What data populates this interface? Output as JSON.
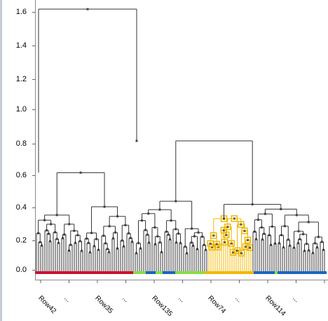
{
  "dendrogram": {
    "y_axis": {
      "ticks": [
        "1.6",
        "1.4",
        "1.2",
        "1.0",
        "0.8",
        "0.6",
        "0.4",
        "0.2",
        "0.0"
      ],
      "min": 0.0,
      "max": 1.7
    },
    "x_axis": {
      "labels": [
        "Row42",
        "...",
        "Row35",
        "...",
        "Row135",
        "...",
        "Row74",
        "...",
        "Row114",
        "..."
      ]
    },
    "colors": {
      "red_cluster": "#cc1133",
      "green_cluster": "#88dd44",
      "blue_cluster": "#1a66c2",
      "selection": "#f2b800",
      "branch": "#333333"
    },
    "selected_cluster_label": "Row74"
  }
}
